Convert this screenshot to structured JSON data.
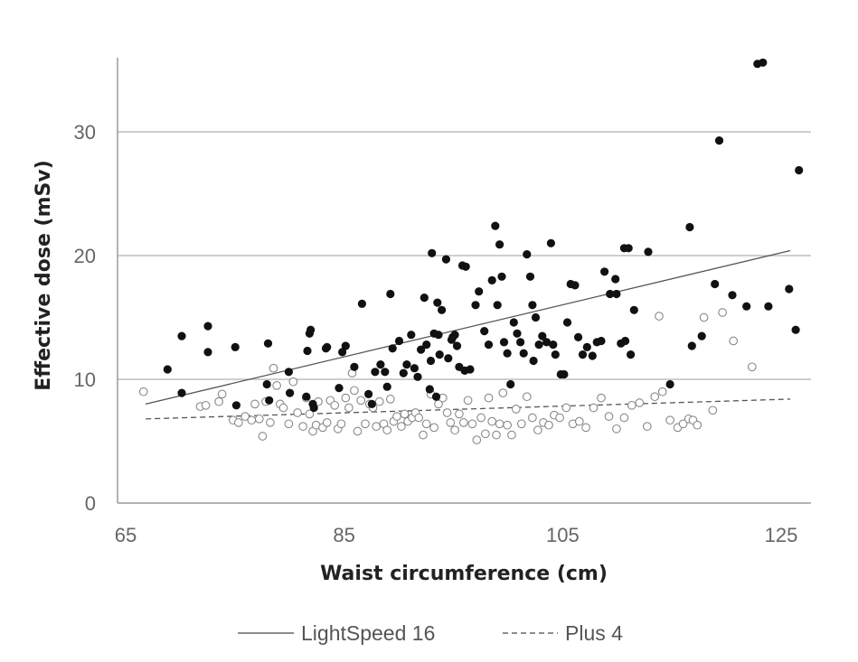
{
  "chart_data": {
    "type": "scatter",
    "title": "",
    "xlabel": "Waist circumference (cm)",
    "ylabel": "Effective dose (mSv)",
    "xlim": [
      65,
      127
    ],
    "ylim": [
      0,
      36
    ],
    "xticks": [
      65,
      85,
      105,
      125
    ],
    "yticks": [
      0,
      10,
      20,
      30
    ],
    "grid": "horizontal",
    "legend": "bottom",
    "series": [
      {
        "name": "LightSpeed 16",
        "marker": "filled-circle",
        "color": "#111111",
        "trend": {
          "style": "solid",
          "x": [
            66.5,
            125.5
          ],
          "y": [
            8.0,
            20.4
          ]
        },
        "points": [
          [
            68.5,
            10.8
          ],
          [
            69.8,
            8.9
          ],
          [
            69.8,
            13.5
          ],
          [
            72.2,
            12.2
          ],
          [
            72.2,
            14.3
          ],
          [
            74.7,
            12.6
          ],
          [
            74.8,
            7.9
          ],
          [
            77.7,
            12.9
          ],
          [
            77.6,
            9.6
          ],
          [
            77.8,
            8.3
          ],
          [
            79.6,
            10.6
          ],
          [
            79.7,
            8.9
          ],
          [
            81.2,
            8.6
          ],
          [
            81.3,
            12.3
          ],
          [
            81.5,
            13.7
          ],
          [
            81.6,
            14.0
          ],
          [
            81.8,
            8.0
          ],
          [
            81.9,
            7.7
          ],
          [
            83.0,
            12.5
          ],
          [
            83.1,
            12.6
          ],
          [
            84.5,
            12.2
          ],
          [
            84.8,
            12.7
          ],
          [
            84.2,
            9.3
          ],
          [
            85.6,
            11.0
          ],
          [
            86.3,
            16.1
          ],
          [
            86.9,
            8.8
          ],
          [
            87.2,
            8.0
          ],
          [
            87.5,
            10.6
          ],
          [
            88.0,
            11.2
          ],
          [
            88.4,
            10.6
          ],
          [
            88.6,
            9.4
          ],
          [
            88.9,
            16.9
          ],
          [
            89.1,
            12.5
          ],
          [
            89.7,
            13.1
          ],
          [
            90.1,
            10.5
          ],
          [
            90.4,
            11.2
          ],
          [
            90.8,
            13.6
          ],
          [
            91.1,
            10.9
          ],
          [
            91.4,
            10.2
          ],
          [
            91.7,
            12.4
          ],
          [
            92.0,
            16.6
          ],
          [
            92.2,
            12.8
          ],
          [
            92.5,
            9.2
          ],
          [
            92.6,
            11.5
          ],
          [
            92.9,
            13.7
          ],
          [
            93.1,
            8.6
          ],
          [
            93.4,
            12.0
          ],
          [
            93.6,
            15.6
          ],
          [
            94.2,
            11.7
          ],
          [
            94.5,
            13.2
          ],
          [
            94.8,
            13.6
          ],
          [
            95.0,
            12.7
          ],
          [
            95.2,
            11.0
          ],
          [
            95.5,
            19.2
          ],
          [
            95.7,
            10.7
          ],
          [
            92.7,
            20.2
          ],
          [
            93.2,
            16.2
          ],
          [
            93.3,
            13.6
          ],
          [
            94.0,
            19.7
          ],
          [
            94.6,
            13.4
          ],
          [
            95.8,
            19.1
          ],
          [
            96.2,
            10.8
          ],
          [
            96.7,
            16.0
          ],
          [
            97.0,
            17.1
          ],
          [
            97.5,
            13.9
          ],
          [
            97.9,
            12.8
          ],
          [
            98.2,
            18.0
          ],
          [
            98.5,
            22.4
          ],
          [
            98.7,
            16.0
          ],
          [
            98.9,
            20.9
          ],
          [
            99.1,
            18.3
          ],
          [
            99.3,
            13.0
          ],
          [
            99.6,
            12.1
          ],
          [
            99.9,
            9.6
          ],
          [
            100.2,
            14.6
          ],
          [
            100.5,
            13.7
          ],
          [
            100.8,
            13.0
          ],
          [
            101.1,
            12.1
          ],
          [
            101.4,
            20.1
          ],
          [
            101.7,
            18.3
          ],
          [
            101.9,
            16.0
          ],
          [
            102.0,
            11.5
          ],
          [
            102.2,
            15.0
          ],
          [
            102.5,
            12.8
          ],
          [
            102.8,
            13.5
          ],
          [
            103.2,
            13.0
          ],
          [
            103.6,
            21.0
          ],
          [
            103.8,
            12.8
          ],
          [
            104.0,
            12.0
          ],
          [
            104.5,
            10.4
          ],
          [
            104.8,
            10.4
          ],
          [
            105.1,
            14.6
          ],
          [
            105.4,
            17.7
          ],
          [
            105.8,
            17.6
          ],
          [
            106.1,
            13.4
          ],
          [
            106.5,
            12.0
          ],
          [
            106.9,
            12.6
          ],
          [
            107.4,
            11.9
          ],
          [
            107.8,
            13.0
          ],
          [
            108.2,
            13.1
          ],
          [
            108.5,
            18.7
          ],
          [
            109.0,
            16.9
          ],
          [
            109.5,
            18.1
          ],
          [
            109.6,
            16.9
          ],
          [
            110.0,
            12.9
          ],
          [
            110.4,
            13.1
          ],
          [
            110.3,
            20.6
          ],
          [
            110.7,
            20.6
          ],
          [
            110.9,
            12.0
          ],
          [
            111.2,
            15.6
          ],
          [
            112.5,
            20.3
          ],
          [
            114.5,
            9.6
          ],
          [
            116.3,
            22.3
          ],
          [
            116.5,
            12.7
          ],
          [
            117.4,
            13.5
          ],
          [
            118.6,
            17.7
          ],
          [
            119.0,
            29.3
          ],
          [
            120.2,
            16.8
          ],
          [
            121.5,
            15.9
          ],
          [
            122.5,
            35.5
          ],
          [
            123.0,
            35.6
          ],
          [
            123.5,
            15.9
          ],
          [
            125.4,
            17.3
          ],
          [
            126.0,
            14.0
          ],
          [
            126.3,
            26.9
          ]
        ]
      },
      {
        "name": "Plus 4",
        "marker": "open-circle",
        "color": "#888888",
        "trend": {
          "style": "dashed",
          "x": [
            66.5,
            125.5
          ],
          "y": [
            6.8,
            8.4
          ]
        },
        "points": [
          [
            66.3,
            9.0
          ],
          [
            71.5,
            7.8
          ],
          [
            72.0,
            7.9
          ],
          [
            73.2,
            8.2
          ],
          [
            73.5,
            8.8
          ],
          [
            74.5,
            6.7
          ],
          [
            75.0,
            6.5
          ],
          [
            75.6,
            7.0
          ],
          [
            76.2,
            6.7
          ],
          [
            76.5,
            8.0
          ],
          [
            76.9,
            6.8
          ],
          [
            77.2,
            5.4
          ],
          [
            77.5,
            8.2
          ],
          [
            77.9,
            6.5
          ],
          [
            78.2,
            10.9
          ],
          [
            78.5,
            9.5
          ],
          [
            78.8,
            8.0
          ],
          [
            79.1,
            7.7
          ],
          [
            79.6,
            6.4
          ],
          [
            80.0,
            9.8
          ],
          [
            80.4,
            7.3
          ],
          [
            80.9,
            6.2
          ],
          [
            81.2,
            8.5
          ],
          [
            81.5,
            7.2
          ],
          [
            81.8,
            5.8
          ],
          [
            82.1,
            6.3
          ],
          [
            82.3,
            8.2
          ],
          [
            82.7,
            6.1
          ],
          [
            83.1,
            6.5
          ],
          [
            83.4,
            8.3
          ],
          [
            83.8,
            7.9
          ],
          [
            84.1,
            6.0
          ],
          [
            84.4,
            6.4
          ],
          [
            84.8,
            8.5
          ],
          [
            85.1,
            7.7
          ],
          [
            85.4,
            10.5
          ],
          [
            85.6,
            9.1
          ],
          [
            85.9,
            5.8
          ],
          [
            86.2,
            8.3
          ],
          [
            86.6,
            6.4
          ],
          [
            87.0,
            8.0
          ],
          [
            87.3,
            7.7
          ],
          [
            87.6,
            6.2
          ],
          [
            87.9,
            8.2
          ],
          [
            88.3,
            6.4
          ],
          [
            88.6,
            5.9
          ],
          [
            88.9,
            8.4
          ],
          [
            89.2,
            6.6
          ],
          [
            89.5,
            7.0
          ],
          [
            89.9,
            6.2
          ],
          [
            90.2,
            7.2
          ],
          [
            90.5,
            6.6
          ],
          [
            90.9,
            6.9
          ],
          [
            91.2,
            7.3
          ],
          [
            91.5,
            6.9
          ],
          [
            91.9,
            5.5
          ],
          [
            92.2,
            6.4
          ],
          [
            92.6,
            8.8
          ],
          [
            92.9,
            6.1
          ],
          [
            93.3,
            8.0
          ],
          [
            93.7,
            8.5
          ],
          [
            94.1,
            7.3
          ],
          [
            94.4,
            6.5
          ],
          [
            94.8,
            5.9
          ],
          [
            95.2,
            7.2
          ],
          [
            95.6,
            6.5
          ],
          [
            96.0,
            8.3
          ],
          [
            96.4,
            6.4
          ],
          [
            96.8,
            5.1
          ],
          [
            97.2,
            6.9
          ],
          [
            97.6,
            5.6
          ],
          [
            97.9,
            8.5
          ],
          [
            98.2,
            6.6
          ],
          [
            98.6,
            5.5
          ],
          [
            98.9,
            6.4
          ],
          [
            99.2,
            8.9
          ],
          [
            99.6,
            6.3
          ],
          [
            100.0,
            5.5
          ],
          [
            100.4,
            7.6
          ],
          [
            100.9,
            6.4
          ],
          [
            101.4,
            8.6
          ],
          [
            101.9,
            6.9
          ],
          [
            102.4,
            5.9
          ],
          [
            102.9,
            6.5
          ],
          [
            103.4,
            6.3
          ],
          [
            103.9,
            7.1
          ],
          [
            104.4,
            6.9
          ],
          [
            105.0,
            7.7
          ],
          [
            105.6,
            6.4
          ],
          [
            106.2,
            6.6
          ],
          [
            106.8,
            6.1
          ],
          [
            107.5,
            7.7
          ],
          [
            108.2,
            8.5
          ],
          [
            108.9,
            7.0
          ],
          [
            109.6,
            6.0
          ],
          [
            110.3,
            6.9
          ],
          [
            111.0,
            7.9
          ],
          [
            111.7,
            8.1
          ],
          [
            112.4,
            6.2
          ],
          [
            113.1,
            8.6
          ],
          [
            113.8,
            9.0
          ],
          [
            114.5,
            6.7
          ],
          [
            115.2,
            6.1
          ],
          [
            115.7,
            6.4
          ],
          [
            116.2,
            6.8
          ],
          [
            116.6,
            6.7
          ],
          [
            117.0,
            6.3
          ],
          [
            113.5,
            15.1
          ],
          [
            117.6,
            15.0
          ],
          [
            118.4,
            7.5
          ],
          [
            119.3,
            15.4
          ],
          [
            120.3,
            13.1
          ],
          [
            122.0,
            11.0
          ]
        ]
      }
    ]
  },
  "legend": {
    "items": [
      {
        "label": "LightSpeed 16",
        "style": "solid"
      },
      {
        "label": "Plus 4",
        "style": "dashed"
      }
    ]
  }
}
